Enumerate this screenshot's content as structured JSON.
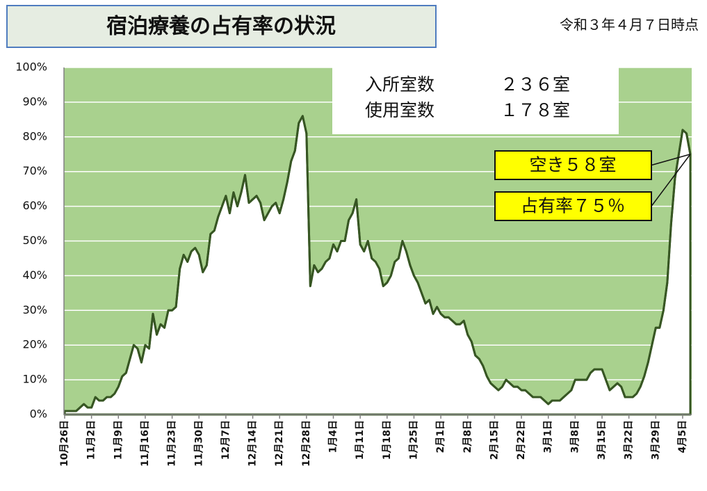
{
  "chart_data": {
    "type": "area",
    "title": "宿泊療養の占有率の状況",
    "subtitle": "令和３年４月７日時点",
    "info": [
      {
        "label": "入所室数",
        "value": "２３６室"
      },
      {
        "label": "使用室数",
        "value": "１７８室"
      }
    ],
    "annotations": [
      "空き５８室",
      "占有率７５％"
    ],
    "line_color": "#375623",
    "plot_color": "#a9d18e",
    "fill_color": "#ffffff",
    "grid": true,
    "ylim": [
      0,
      100
    ],
    "yticks": [
      {
        "value": 0,
        "label": "0%"
      },
      {
        "value": 10,
        "label": "10%"
      },
      {
        "value": 20,
        "label": "20%"
      },
      {
        "value": 30,
        "label": "30%"
      },
      {
        "value": 40,
        "label": "40%"
      },
      {
        "value": 50,
        "label": "50%"
      },
      {
        "value": 60,
        "label": "60%"
      },
      {
        "value": 70,
        "label": "70%"
      },
      {
        "value": 80,
        "label": "80%"
      },
      {
        "value": 90,
        "label": "90%"
      },
      {
        "value": 100,
        "label": "100%"
      }
    ],
    "categories": [
      "10月26日",
      null,
      null,
      null,
      null,
      null,
      null,
      "11月2日",
      null,
      null,
      null,
      null,
      null,
      null,
      "11月9日",
      null,
      null,
      null,
      null,
      null,
      null,
      "11月16日",
      null,
      null,
      null,
      null,
      null,
      null,
      "11月23日",
      null,
      null,
      null,
      null,
      null,
      null,
      "11月30日",
      null,
      null,
      null,
      null,
      null,
      null,
      "12月7日",
      null,
      null,
      null,
      null,
      null,
      null,
      "12月14日",
      null,
      null,
      null,
      null,
      null,
      null,
      "12月21日",
      null,
      null,
      null,
      null,
      null,
      null,
      "12月28日",
      null,
      null,
      null,
      null,
      null,
      null,
      "1月4日",
      null,
      null,
      null,
      null,
      null,
      null,
      "1月11日",
      null,
      null,
      null,
      null,
      null,
      null,
      "1月18日",
      null,
      null,
      null,
      null,
      null,
      null,
      "1月25日",
      null,
      null,
      null,
      null,
      null,
      null,
      "2月1日",
      null,
      null,
      null,
      null,
      null,
      null,
      "2月8日",
      null,
      null,
      null,
      null,
      null,
      null,
      "2月15日",
      null,
      null,
      null,
      null,
      null,
      null,
      "2月22日",
      null,
      null,
      null,
      null,
      null,
      null,
      "3月1日",
      null,
      null,
      null,
      null,
      null,
      null,
      "3月8日",
      null,
      null,
      null,
      null,
      null,
      null,
      "3月15日",
      null,
      null,
      null,
      null,
      null,
      null,
      "3月22日",
      null,
      null,
      null,
      null,
      null,
      null,
      "3月29日",
      null,
      null,
      null,
      null,
      null,
      null,
      "4月5日",
      null,
      null
    ],
    "values": [
      1,
      1,
      1,
      1,
      2,
      3,
      2,
      2,
      5,
      4,
      4,
      5,
      5,
      6,
      8,
      11,
      12,
      16,
      20,
      19,
      15,
      20,
      19,
      29,
      23,
      26,
      25,
      30,
      30,
      31,
      42,
      46,
      44,
      47,
      48,
      46,
      41,
      43,
      52,
      53,
      57,
      60,
      63,
      58,
      64,
      60,
      64,
      69,
      61,
      62,
      63,
      61,
      56,
      58,
      60,
      61,
      58,
      62,
      67,
      73,
      76,
      84,
      86,
      81,
      37,
      43,
      41,
      42,
      44,
      45,
      49,
      47,
      50,
      50,
      56,
      58,
      62,
      49,
      47,
      50,
      45,
      44,
      42,
      37,
      38,
      40,
      44,
      45,
      50,
      47,
      43,
      40,
      38,
      35,
      32,
      33,
      29,
      31,
      29,
      28,
      28,
      27,
      26,
      26,
      27,
      23,
      21,
      17,
      16,
      14,
      11,
      9,
      8,
      7,
      8,
      10,
      9,
      8,
      8,
      7,
      7,
      6,
      5,
      5,
      5,
      4,
      3,
      4,
      4,
      4,
      5,
      6,
      7,
      10,
      10,
      10,
      10,
      12,
      13,
      13,
      13,
      10,
      7,
      8,
      9,
      8,
      5,
      5,
      5,
      6,
      8,
      11,
      15,
      20,
      25,
      25,
      30,
      38,
      55,
      68,
      75,
      82,
      81,
      75
    ]
  }
}
